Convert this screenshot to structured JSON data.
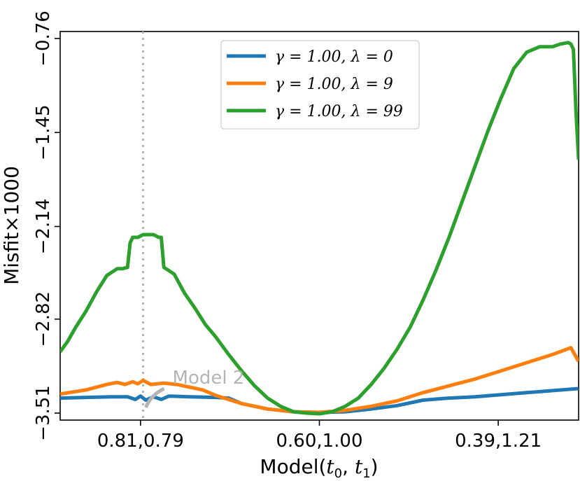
{
  "chart_data": {
    "type": "line",
    "xlabel": "Model(t₀, t₁)",
    "ylabel": "Misfit×1000",
    "x_ticks": [
      {
        "x": 0.31,
        "label": "0.81,0.79"
      },
      {
        "x": 1.0,
        "label": "0.60,1.00"
      },
      {
        "x": 1.69,
        "label": "0.39,1.21"
      }
    ],
    "y_ticks": [
      -3.51,
      -2.82,
      -2.14,
      -1.45,
      -0.76
    ],
    "xlim": [
      0,
      2
    ],
    "ylim": [
      -3.51,
      -0.76
    ],
    "grid": false,
    "legend_position": "top-center",
    "vline": {
      "x": 0.32,
      "style": "dotted",
      "color": "#b4b4b4"
    },
    "annotation": {
      "text": "Model 2",
      "color": "#b4b4b4",
      "x": 0.32,
      "y": -3.51
    },
    "series": [
      {
        "name": "γ = 1.00, λ = 0",
        "color": "#1f77b4",
        "x": [
          0,
          0.1,
          0.2,
          0.26,
          0.29,
          0.31,
          0.33,
          0.36,
          0.39,
          0.42,
          0.5,
          0.6,
          0.65,
          0.7,
          0.8,
          0.9,
          1.0,
          1.1,
          1.2,
          1.3,
          1.4,
          1.5,
          1.6,
          1.7,
          1.8,
          1.9,
          2.0
        ],
        "y": [
          -3.4,
          -3.395,
          -3.39,
          -3.39,
          -3.41,
          -3.385,
          -3.415,
          -3.39,
          -3.41,
          -3.385,
          -3.39,
          -3.395,
          -3.4,
          -3.44,
          -3.48,
          -3.5,
          -3.505,
          -3.5,
          -3.48,
          -3.455,
          -3.415,
          -3.4,
          -3.39,
          -3.375,
          -3.36,
          -3.345,
          -3.33
        ]
      },
      {
        "name": "γ = 1.00, λ = 9",
        "color": "#ff7f0e",
        "x": [
          0,
          0.1,
          0.18,
          0.22,
          0.25,
          0.28,
          0.3,
          0.32,
          0.35,
          0.4,
          0.45,
          0.5,
          0.55,
          0.6,
          0.7,
          0.8,
          0.9,
          1.0,
          1.1,
          1.2,
          1.3,
          1.4,
          1.5,
          1.6,
          1.7,
          1.8,
          1.9,
          1.97,
          2.0
        ],
        "y": [
          -3.37,
          -3.34,
          -3.3,
          -3.285,
          -3.3,
          -3.28,
          -3.295,
          -3.27,
          -3.3,
          -3.29,
          -3.3,
          -3.32,
          -3.34,
          -3.38,
          -3.44,
          -3.48,
          -3.5,
          -3.505,
          -3.49,
          -3.46,
          -3.42,
          -3.36,
          -3.31,
          -3.26,
          -3.2,
          -3.14,
          -3.08,
          -3.03,
          -3.13
        ]
      },
      {
        "name": "γ = 1.00, λ = 99",
        "color": "#2ca02c",
        "x": [
          0,
          0.03,
          0.06,
          0.1,
          0.14,
          0.18,
          0.22,
          0.24,
          0.26,
          0.27,
          0.28,
          0.3,
          0.32,
          0.34,
          0.36,
          0.38,
          0.39,
          0.4,
          0.44,
          0.48,
          0.52,
          0.56,
          0.6,
          0.65,
          0.7,
          0.75,
          0.8,
          0.85,
          0.9,
          0.95,
          1.0,
          1.05,
          1.1,
          1.15,
          1.2,
          1.25,
          1.3,
          1.35,
          1.4,
          1.45,
          1.5,
          1.55,
          1.6,
          1.65,
          1.7,
          1.75,
          1.8,
          1.85,
          1.9,
          1.93,
          1.96,
          1.97,
          1.98,
          1.99,
          2.0
        ],
        "y": [
          -3.06,
          -2.98,
          -2.88,
          -2.76,
          -2.62,
          -2.5,
          -2.45,
          -2.45,
          -2.44,
          -2.26,
          -2.22,
          -2.22,
          -2.2,
          -2.2,
          -2.2,
          -2.22,
          -2.22,
          -2.44,
          -2.49,
          -2.63,
          -2.74,
          -2.86,
          -2.95,
          -3.08,
          -3.2,
          -3.31,
          -3.4,
          -3.46,
          -3.5,
          -3.51,
          -3.515,
          -3.5,
          -3.46,
          -3.4,
          -3.3,
          -3.18,
          -3.04,
          -2.88,
          -2.68,
          -2.46,
          -2.22,
          -1.96,
          -1.7,
          -1.44,
          -1.2,
          -0.98,
          -0.86,
          -0.82,
          -0.82,
          -0.8,
          -0.79,
          -0.8,
          -0.84,
          -1.3,
          -1.65
        ]
      }
    ]
  }
}
